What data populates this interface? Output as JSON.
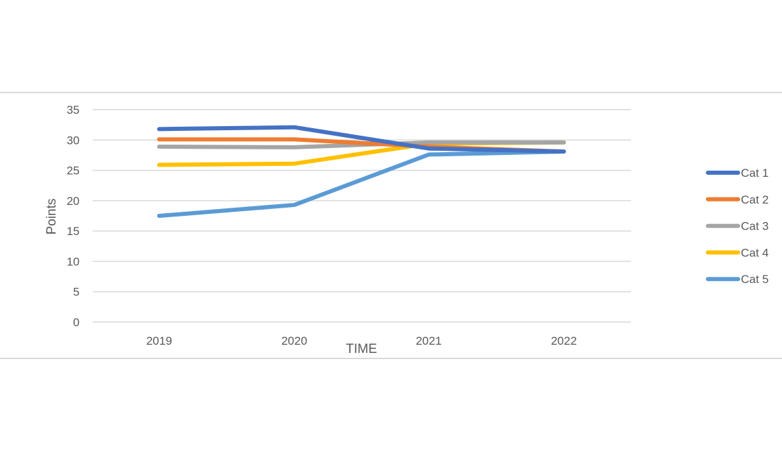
{
  "chart_data": {
    "type": "line",
    "categories": [
      "2019",
      "2020",
      "2021",
      "2022"
    ],
    "series": [
      {
        "name": "Cat 1",
        "color": "#4472C4",
        "values": [
          31.8,
          32.1,
          28.6,
          28.1
        ]
      },
      {
        "name": "Cat 2",
        "color": "#ED7D31",
        "values": [
          30.1,
          30.1,
          28.9,
          28.1
        ]
      },
      {
        "name": "Cat 3",
        "color": "#A5A5A5",
        "values": [
          28.9,
          28.8,
          29.6,
          29.6
        ]
      },
      {
        "name": "Cat 4",
        "color": "#FFC000",
        "values": [
          25.9,
          26.1,
          29.4,
          29.6
        ]
      },
      {
        "name": "Cat 5",
        "color": "#5B9BD5",
        "values": [
          17.5,
          19.3,
          27.6,
          28.1
        ]
      }
    ],
    "xlabel": "TIME",
    "ylabel": "Points",
    "ylim": [
      0,
      35
    ],
    "yticks": [
      "0",
      "5",
      "10",
      "15",
      "20",
      "25",
      "30",
      "35"
    ],
    "grid": true,
    "legend": "right"
  }
}
